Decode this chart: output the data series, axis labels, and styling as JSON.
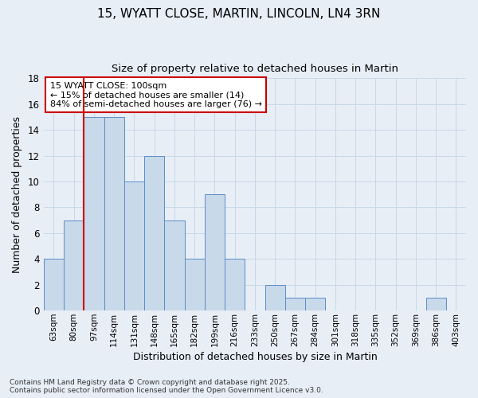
{
  "title1": "15, WYATT CLOSE, MARTIN, LINCOLN, LN4 3RN",
  "title2": "Size of property relative to detached houses in Martin",
  "xlabel": "Distribution of detached houses by size in Martin",
  "ylabel": "Number of detached properties",
  "categories": [
    "63sqm",
    "80sqm",
    "97sqm",
    "114sqm",
    "131sqm",
    "148sqm",
    "165sqm",
    "182sqm",
    "199sqm",
    "216sqm",
    "233sqm",
    "250sqm",
    "267sqm",
    "284sqm",
    "301sqm",
    "318sqm",
    "335sqm",
    "352sqm",
    "369sqm",
    "386sqm",
    "403sqm"
  ],
  "values": [
    4,
    7,
    15,
    15,
    10,
    12,
    7,
    4,
    9,
    4,
    0,
    2,
    1,
    1,
    0,
    0,
    0,
    0,
    0,
    1,
    0
  ],
  "bar_color": "#c8d9ea",
  "bar_edge_color": "#5b8cc8",
  "grid_color": "#c8d8e8",
  "background_color": "#e8eef6",
  "vline_x_index": 2,
  "vline_color": "#cc0000",
  "annotation_text": "15 WYATT CLOSE: 100sqm\n← 15% of detached houses are smaller (14)\n84% of semi-detached houses are larger (76) →",
  "annotation_box_color": "#ffffff",
  "annotation_box_edge": "#cc0000",
  "ylim": [
    0,
    18
  ],
  "yticks": [
    0,
    2,
    4,
    6,
    8,
    10,
    12,
    14,
    16,
    18
  ],
  "footnote": "Contains HM Land Registry data © Crown copyright and database right 2025.\nContains public sector information licensed under the Open Government Licence v3.0."
}
